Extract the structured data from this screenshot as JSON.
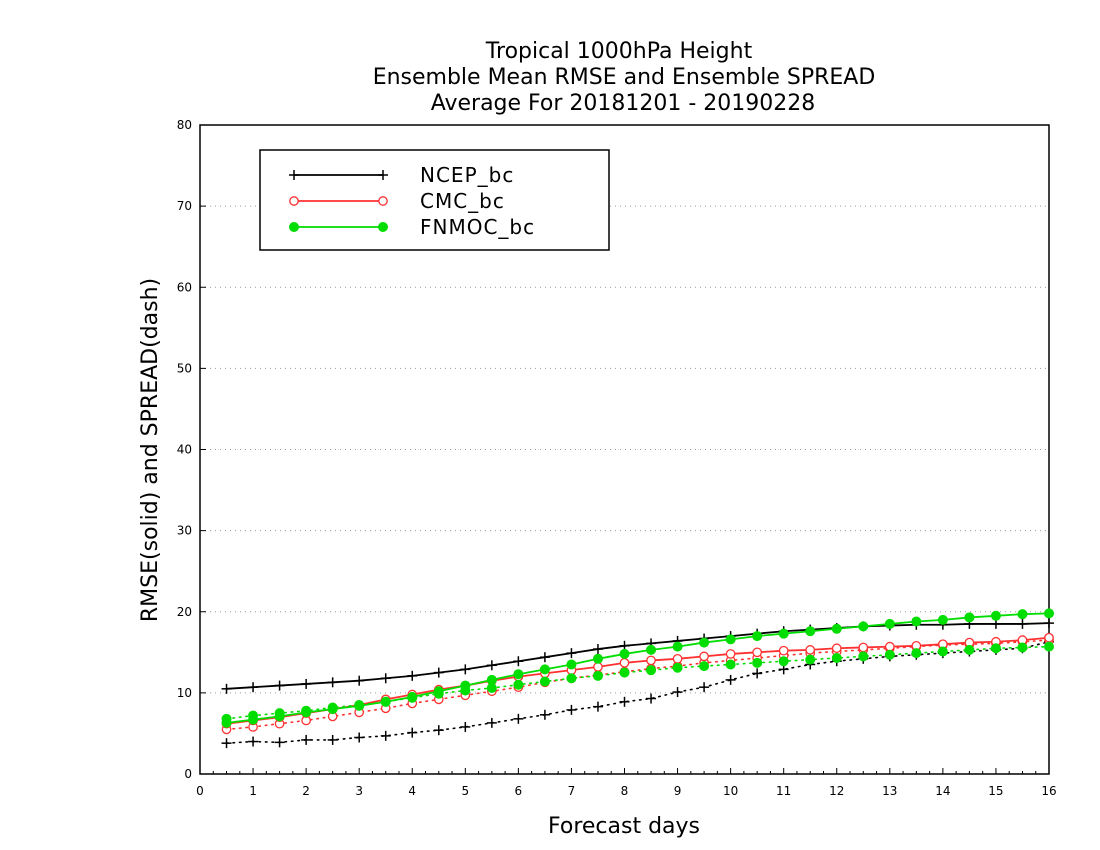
{
  "chart_data": {
    "type": "line",
    "title_lines": [
      "Tropical 1000hPa Height",
      "Ensemble Mean RMSE and Ensemble SPREAD",
      "Average For 20181201 - 20190228"
    ],
    "xlabel": "Forecast days",
    "ylabel": "RMSE(solid) and SPREAD(dash)",
    "xlim": [
      0,
      16
    ],
    "ylim": [
      0,
      80
    ],
    "x_ticks": [
      0,
      1,
      2,
      3,
      4,
      5,
      6,
      7,
      8,
      9,
      10,
      11,
      12,
      13,
      14,
      15,
      16
    ],
    "y_ticks": [
      0,
      10,
      20,
      30,
      40,
      50,
      60,
      70,
      80
    ],
    "grid": "horizontal dotted",
    "legend_position": "top-left",
    "x": [
      0.5,
      1,
      1.5,
      2,
      2.5,
      3,
      3.5,
      4,
      4.5,
      5,
      5.5,
      6,
      6.5,
      7,
      7.5,
      8,
      8.5,
      9,
      9.5,
      10,
      10.5,
      11,
      11.5,
      12,
      12.5,
      13,
      13.5,
      14,
      14.5,
      15,
      15.5,
      16
    ],
    "series": [
      {
        "name": "NCEP_bc",
        "color": "#000000",
        "marker": "plus",
        "rmse": [
          10.5,
          10.7,
          10.9,
          11.1,
          11.3,
          11.5,
          11.8,
          12.1,
          12.5,
          12.9,
          13.4,
          13.9,
          14.4,
          14.9,
          15.4,
          15.8,
          16.1,
          16.4,
          16.7,
          17.0,
          17.3,
          17.6,
          17.8,
          18.0,
          18.2,
          18.3,
          18.4,
          18.4,
          18.5,
          18.5,
          18.5,
          18.6
        ],
        "spread": [
          3.8,
          4.0,
          3.9,
          4.2,
          4.2,
          4.5,
          4.7,
          5.1,
          5.4,
          5.8,
          6.3,
          6.8,
          7.3,
          7.9,
          8.3,
          8.9,
          9.3,
          10.1,
          10.7,
          11.6,
          12.4,
          12.9,
          13.5,
          13.9,
          14.2,
          14.5,
          14.7,
          14.9,
          15.1,
          15.3,
          15.5,
          16.3
        ]
      },
      {
        "name": "CMC_bc",
        "color": "#ff3030",
        "marker": "open-circle",
        "rmse": [
          6.2,
          6.6,
          7.0,
          7.5,
          8.0,
          8.5,
          9.2,
          9.8,
          10.4,
          10.9,
          11.5,
          12.0,
          12.4,
          12.8,
          13.2,
          13.7,
          14.0,
          14.2,
          14.5,
          14.8,
          15.0,
          15.2,
          15.3,
          15.5,
          15.6,
          15.7,
          15.8,
          16.0,
          16.2,
          16.3,
          16.5,
          16.8
        ],
        "spread": [
          5.5,
          5.8,
          6.2,
          6.6,
          7.1,
          7.6,
          8.1,
          8.7,
          9.2,
          9.7,
          10.2,
          10.7,
          11.3,
          11.8,
          12.2,
          12.6,
          13.0,
          13.3,
          13.7,
          14.0,
          14.3,
          14.6,
          14.9,
          15.1,
          15.3,
          15.5,
          15.7,
          15.9,
          16.0,
          16.1,
          16.3,
          16.5
        ]
      },
      {
        "name": "FNMOC_bc",
        "color": "#00dd00",
        "marker": "filled-circle",
        "rmse": [
          6.3,
          6.7,
          7.1,
          7.6,
          8.0,
          8.4,
          8.9,
          9.5,
          10.2,
          10.9,
          11.6,
          12.3,
          12.9,
          13.5,
          14.2,
          14.8,
          15.3,
          15.7,
          16.2,
          16.6,
          17.0,
          17.3,
          17.6,
          17.9,
          18.2,
          18.5,
          18.8,
          19.0,
          19.3,
          19.5,
          19.7,
          19.8
        ],
        "spread": [
          6.8,
          7.2,
          7.5,
          7.8,
          8.2,
          8.5,
          8.9,
          9.4,
          9.9,
          10.3,
          10.6,
          11.0,
          11.4,
          11.8,
          12.1,
          12.5,
          12.8,
          13.1,
          13.3,
          13.5,
          13.7,
          13.9,
          14.1,
          14.3,
          14.5,
          14.7,
          14.9,
          15.1,
          15.3,
          15.5,
          15.6,
          15.7
        ]
      }
    ]
  }
}
